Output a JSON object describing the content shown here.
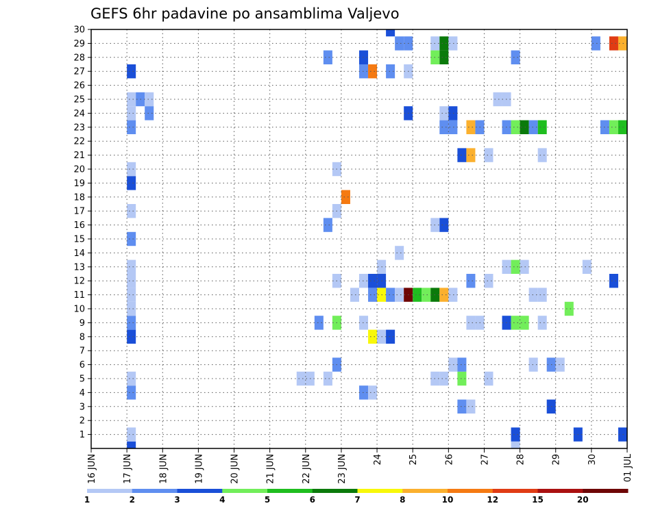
{
  "chart_data": {
    "type": "heatmap",
    "title": "GEFS 6hr padavine po ansamblima Valjevo",
    "xlabel": "",
    "ylabel": "",
    "x_ticks": [
      "16 JUN",
      "17 JUN",
      "18 JUN",
      "19 JUN",
      "20 JUN",
      "21 JUN",
      "22 JUN",
      "23 JUN",
      "24",
      "25",
      "26",
      "27",
      "28",
      "29",
      "30",
      "01 JUL"
    ],
    "y_ticks": [
      "1",
      "2",
      "3",
      "4",
      "5",
      "6",
      "7",
      "8",
      "9",
      "10",
      "11",
      "12",
      "13",
      "14",
      "15",
      "16",
      "17",
      "18",
      "19",
      "20",
      "21",
      "22",
      "23",
      "24",
      "25",
      "26",
      "27",
      "28",
      "29",
      "30"
    ],
    "xlim": [
      0,
      15
    ],
    "ylim": [
      0,
      30
    ],
    "grid": true,
    "colorbar": {
      "labels": [
        "1",
        "2",
        "3",
        "4",
        "5",
        "6",
        "7",
        "8",
        "10",
        "12",
        "15",
        "20"
      ],
      "colors": [
        "#b4c8f5",
        "#5f8ef0",
        "#1a4fd8",
        "#72ee5a",
        "#1fbe1f",
        "#0b7a0b",
        "#f8f80a",
        "#fbb02e",
        "#f57a12",
        "#e03c14",
        "#aa1010",
        "#6e0606"
      ]
    },
    "cell_width_days": 0.25,
    "cells": [
      {
        "t": 1.0,
        "m": 0,
        "c": 2
      },
      {
        "t": 1.0,
        "m": 1,
        "c": 0
      },
      {
        "t": 1.0,
        "m": 4,
        "c": 1
      },
      {
        "t": 1.0,
        "m": 5,
        "c": 0
      },
      {
        "t": 1.0,
        "m": 8,
        "c": 2
      },
      {
        "t": 1.0,
        "m": 9,
        "c": 1
      },
      {
        "t": 1.0,
        "m": 10,
        "c": 0
      },
      {
        "t": 1.0,
        "m": 11,
        "c": 0
      },
      {
        "t": 1.0,
        "m": 12,
        "c": 0
      },
      {
        "t": 1.0,
        "m": 13,
        "c": 0
      },
      {
        "t": 1.0,
        "m": 15,
        "c": 1
      },
      {
        "t": 1.0,
        "m": 17,
        "c": 0
      },
      {
        "t": 1.0,
        "m": 19,
        "c": 2
      },
      {
        "t": 1.0,
        "m": 20,
        "c": 0
      },
      {
        "t": 1.0,
        "m": 23,
        "c": 1
      },
      {
        "t": 1.0,
        "m": 24,
        "c": 0
      },
      {
        "t": 1.0,
        "m": 25,
        "c": 0
      },
      {
        "t": 1.0,
        "m": 27,
        "c": 2
      },
      {
        "t": 1.25,
        "m": 25,
        "c": 1
      },
      {
        "t": 1.5,
        "m": 25,
        "c": 0
      },
      {
        "t": 1.5,
        "m": 24,
        "c": 1
      },
      {
        "t": 5.75,
        "m": 5,
        "c": 0
      },
      {
        "t": 6.0,
        "m": 5,
        "c": 0
      },
      {
        "t": 6.25,
        "m": 9,
        "c": 1
      },
      {
        "t": 6.5,
        "m": 5,
        "c": 0
      },
      {
        "t": 6.5,
        "m": 16,
        "c": 1
      },
      {
        "t": 6.5,
        "m": 28,
        "c": 1
      },
      {
        "t": 6.75,
        "m": 9,
        "c": 3
      },
      {
        "t": 6.75,
        "m": 6,
        "c": 1
      },
      {
        "t": 6.75,
        "m": 12,
        "c": 0
      },
      {
        "t": 6.75,
        "m": 17,
        "c": 0
      },
      {
        "t": 6.75,
        "m": 20,
        "c": 0
      },
      {
        "t": 7.0,
        "m": 18,
        "c": 8
      },
      {
        "t": 7.25,
        "m": 11,
        "c": 0
      },
      {
        "t": 7.5,
        "m": 4,
        "c": 1
      },
      {
        "t": 7.5,
        "m": 9,
        "c": 0
      },
      {
        "t": 7.5,
        "m": 12,
        "c": 0
      },
      {
        "t": 7.5,
        "m": 27,
        "c": 1
      },
      {
        "t": 7.5,
        "m": 28,
        "c": 2
      },
      {
        "t": 7.75,
        "m": 4,
        "c": 0
      },
      {
        "t": 7.75,
        "m": 8,
        "c": 6
      },
      {
        "t": 7.75,
        "m": 11,
        "c": 1
      },
      {
        "t": 7.75,
        "m": 12,
        "c": 2
      },
      {
        "t": 7.75,
        "m": 27,
        "c": 8
      },
      {
        "t": 8.0,
        "m": 8,
        "c": 0
      },
      {
        "t": 8.0,
        "m": 11,
        "c": 6
      },
      {
        "t": 8.0,
        "m": 12,
        "c": 2
      },
      {
        "t": 8.0,
        "m": 13,
        "c": 0
      },
      {
        "t": 8.25,
        "m": 8,
        "c": 2
      },
      {
        "t": 8.25,
        "m": 11,
        "c": 1
      },
      {
        "t": 8.25,
        "m": 27,
        "c": 1
      },
      {
        "t": 8.25,
        "m": 30,
        "c": 2
      },
      {
        "t": 8.5,
        "m": 11,
        "c": 0
      },
      {
        "t": 8.5,
        "m": 14,
        "c": 0
      },
      {
        "t": 8.5,
        "m": 29,
        "c": 1
      },
      {
        "t": 8.75,
        "m": 11,
        "c": 11
      },
      {
        "t": 8.75,
        "m": 24,
        "c": 2
      },
      {
        "t": 8.75,
        "m": 29,
        "c": 1
      },
      {
        "t": 8.75,
        "m": 27,
        "c": 0
      },
      {
        "t": 9.0,
        "m": 11,
        "c": 4
      },
      {
        "t": 9.25,
        "m": 11,
        "c": 3
      },
      {
        "t": 9.5,
        "m": 5,
        "c": 0
      },
      {
        "t": 9.5,
        "m": 11,
        "c": 5
      },
      {
        "t": 9.5,
        "m": 16,
        "c": 0
      },
      {
        "t": 9.5,
        "m": 29,
        "c": 0
      },
      {
        "t": 9.5,
        "m": 28,
        "c": 3
      },
      {
        "t": 9.75,
        "m": 5,
        "c": 0
      },
      {
        "t": 9.75,
        "m": 11,
        "c": 7
      },
      {
        "t": 9.75,
        "m": 16,
        "c": 2
      },
      {
        "t": 9.75,
        "m": 23,
        "c": 1
      },
      {
        "t": 9.75,
        "m": 24,
        "c": 0
      },
      {
        "t": 9.75,
        "m": 28,
        "c": 5
      },
      {
        "t": 9.75,
        "m": 29,
        "c": 5
      },
      {
        "t": 10.0,
        "m": 6,
        "c": 0
      },
      {
        "t": 10.0,
        "m": 11,
        "c": 0
      },
      {
        "t": 10.0,
        "m": 23,
        "c": 1
      },
      {
        "t": 10.0,
        "m": 24,
        "c": 2
      },
      {
        "t": 10.0,
        "m": 29,
        "c": 0
      },
      {
        "t": 10.25,
        "m": 3,
        "c": 1
      },
      {
        "t": 10.25,
        "m": 5,
        "c": 3
      },
      {
        "t": 10.25,
        "m": 6,
        "c": 1
      },
      {
        "t": 10.25,
        "m": 21,
        "c": 2
      },
      {
        "t": 10.5,
        "m": 3,
        "c": 0
      },
      {
        "t": 10.5,
        "m": 9,
        "c": 0
      },
      {
        "t": 10.5,
        "m": 12,
        "c": 1
      },
      {
        "t": 10.5,
        "m": 21,
        "c": 7
      },
      {
        "t": 10.5,
        "m": 23,
        "c": 7
      },
      {
        "t": 10.75,
        "m": 9,
        "c": 0
      },
      {
        "t": 10.75,
        "m": 23,
        "c": 1
      },
      {
        "t": 11.0,
        "m": 5,
        "c": 0
      },
      {
        "t": 11.0,
        "m": 12,
        "c": 0
      },
      {
        "t": 11.0,
        "m": 21,
        "c": 0
      },
      {
        "t": 11.25,
        "m": 25,
        "c": 0
      },
      {
        "t": 11.5,
        "m": 9,
        "c": 2
      },
      {
        "t": 11.5,
        "m": 13,
        "c": 0
      },
      {
        "t": 11.5,
        "m": 23,
        "c": 1
      },
      {
        "t": 11.5,
        "m": 25,
        "c": 0
      },
      {
        "t": 11.75,
        "m": 0,
        "c": 0
      },
      {
        "t": 11.75,
        "m": 1,
        "c": 2
      },
      {
        "t": 11.75,
        "m": 9,
        "c": 3
      },
      {
        "t": 11.75,
        "m": 13,
        "c": 3
      },
      {
        "t": 11.75,
        "m": 23,
        "c": 3
      },
      {
        "t": 11.75,
        "m": 28,
        "c": 1
      },
      {
        "t": 12.0,
        "m": 9,
        "c": 3
      },
      {
        "t": 12.0,
        "m": 13,
        "c": 0
      },
      {
        "t": 12.0,
        "m": 23,
        "c": 5
      },
      {
        "t": 12.25,
        "m": 6,
        "c": 0
      },
      {
        "t": 12.25,
        "m": 11,
        "c": 0
      },
      {
        "t": 12.25,
        "m": 23,
        "c": 1
      },
      {
        "t": 12.5,
        "m": 9,
        "c": 0
      },
      {
        "t": 12.5,
        "m": 11,
        "c": 0
      },
      {
        "t": 12.5,
        "m": 21,
        "c": 0
      },
      {
        "t": 12.5,
        "m": 23,
        "c": 4
      },
      {
        "t": 12.75,
        "m": 3,
        "c": 2
      },
      {
        "t": 12.75,
        "m": 6,
        "c": 1
      },
      {
        "t": 13.0,
        "m": 6,
        "c": 0
      },
      {
        "t": 13.25,
        "m": 10,
        "c": 3
      },
      {
        "t": 13.5,
        "m": 1,
        "c": 2
      },
      {
        "t": 13.75,
        "m": 13,
        "c": 0
      },
      {
        "t": 14.0,
        "m": 29,
        "c": 1
      },
      {
        "t": 14.25,
        "m": 23,
        "c": 1
      },
      {
        "t": 14.5,
        "m": 12,
        "c": 2
      },
      {
        "t": 14.5,
        "m": 23,
        "c": 3
      },
      {
        "t": 14.5,
        "m": 29,
        "c": 9
      },
      {
        "t": 14.75,
        "m": 23,
        "c": 4
      },
      {
        "t": 14.75,
        "m": 29,
        "c": 7
      },
      {
        "t": 14.75,
        "m": 1,
        "c": 2
      }
    ]
  }
}
